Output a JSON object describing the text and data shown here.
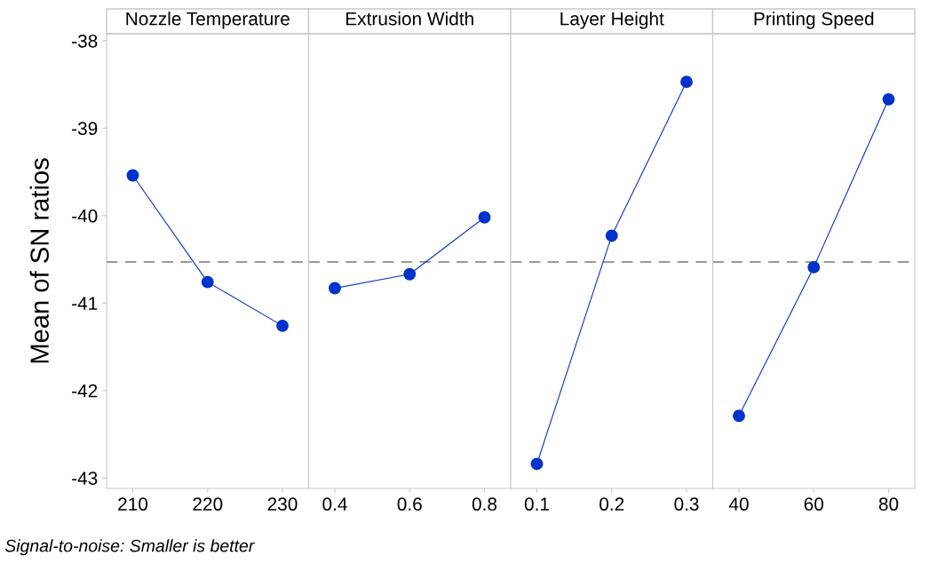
{
  "chart_data": [
    {
      "type": "line",
      "title": "Nozzle Temperature",
      "ylabel": "Mean of SN ratios",
      "categories": [
        "210",
        "220",
        "230"
      ],
      "values": [
        -39.54,
        -40.76,
        -41.26
      ],
      "color": "#0033cc",
      "marker": "circle",
      "ylim": [
        -43.12,
        -37.92
      ],
      "yticks": [
        -43,
        -42,
        -41,
        -40,
        -39,
        -38
      ],
      "ref_lines": [
        {
          "axis": "y",
          "value": -40.53,
          "color": "#999999",
          "line_style": "dashed"
        }
      ],
      "annotations": [
        "Signal-to-noise: Smaller is better"
      ],
      "grid": false
    },
    {
      "type": "line",
      "title": "Extrusion Width",
      "categories": [
        "0.4",
        "0.6",
        "0.8"
      ],
      "values": [
        -40.83,
        -40.67,
        -40.02
      ],
      "color": "#0033cc",
      "marker": "circle",
      "ylim": [
        -43.12,
        -37.92
      ],
      "yticks": [
        -43,
        -42,
        -41,
        -40,
        -39,
        -38
      ],
      "ref_lines": [
        {
          "axis": "y",
          "value": -40.53,
          "color": "#999999",
          "line_style": "dashed"
        }
      ],
      "tick_labels": "x",
      "grid": false
    },
    {
      "type": "line",
      "title": "Layer Height",
      "categories": [
        "0.1",
        "0.2",
        "0.3"
      ],
      "values": [
        -42.84,
        -40.23,
        -38.47
      ],
      "color": "#0033cc",
      "marker": "circle",
      "ylim": [
        -43.12,
        -37.92
      ],
      "yticks": [
        -43,
        -42,
        -41,
        -40,
        -39,
        -38
      ],
      "ref_lines": [
        {
          "axis": "y",
          "value": -40.53,
          "color": "#999999",
          "line_style": "dashed"
        }
      ],
      "tick_labels": "x",
      "grid": false
    },
    {
      "type": "line",
      "title": "Printing Speed",
      "categories": [
        "40",
        "60",
        "80"
      ],
      "values": [
        -42.29,
        -40.59,
        -38.67
      ],
      "color": "#0033cc",
      "marker": "circle",
      "ylim": [
        -43.12,
        -37.92
      ],
      "yticks": [
        -43,
        -42,
        -41,
        -40,
        -39,
        -38
      ],
      "ref_lines": [
        {
          "axis": "y",
          "value": -40.53,
          "color": "#999999",
          "line_style": "dashed"
        }
      ],
      "tick_labels": "x",
      "grid": false
    }
  ]
}
